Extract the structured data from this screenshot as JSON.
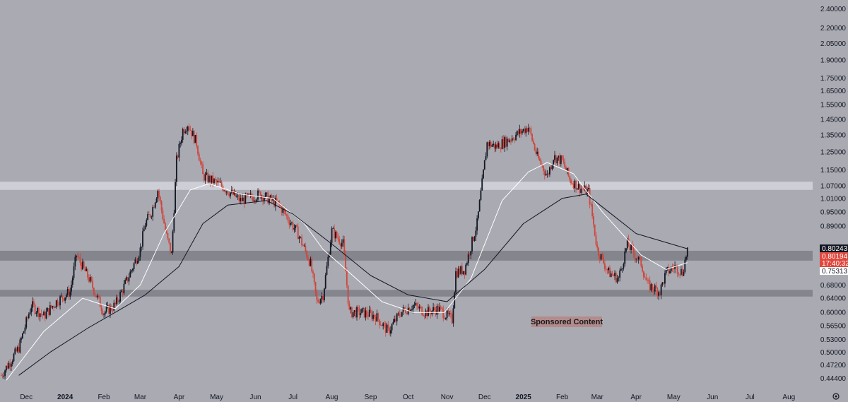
{
  "chart_data": {
    "type": "candlestick",
    "y_scale": "log",
    "y_ticks": [
      "0.44400",
      "0.47200",
      "0.50000",
      "0.53000",
      "0.56500",
      "0.60000",
      "0.64000",
      "0.68000",
      "0.72000",
      "0.75313",
      "0.80194",
      "0.80243",
      "0.89000",
      "0.95000",
      "1.01000",
      "1.07000",
      "1.15000",
      "1.25000",
      "1.35000",
      "1.45000",
      "1.55000",
      "1.65000",
      "1.75000",
      "1.90000",
      "2.05000",
      "2.20000",
      "2.40000"
    ],
    "y_tick_labels": [
      "0.44400",
      "0.47200",
      "0.50000",
      "0.53000",
      "0.56500",
      "0.60000",
      "0.64000",
      "0.68000",
      "0.72000",
      "0.89000",
      "0.95000",
      "1.01000",
      "1.07000",
      "1.15000",
      "1.25000",
      "1.35000",
      "1.45000",
      "1.55000",
      "1.65000",
      "1.75000",
      "1.90000",
      "2.05000",
      "2.20000",
      "2.40000"
    ],
    "y_range": [
      0.425,
      2.5
    ],
    "x_labels": [
      "Dec",
      "2024",
      "Feb",
      "Mar",
      "Apr",
      "May",
      "Jun",
      "Jul",
      "Aug",
      "Sep",
      "Oct",
      "Nov",
      "Dec",
      "2025",
      "Feb",
      "Mar",
      "Apr",
      "May",
      "Jun",
      "Jul",
      "Aug"
    ],
    "x_label_dates": [
      "2023-12-01",
      "2024-01-01",
      "2024-02-01",
      "2024-03-01",
      "2024-04-01",
      "2024-05-01",
      "2024-06-01",
      "2024-07-01",
      "2024-08-01",
      "2024-09-01",
      "2024-10-01",
      "2024-11-01",
      "2024-12-01",
      "2025-01-01",
      "2025-02-01",
      "2025-03-01",
      "2025-04-01",
      "2025-05-01",
      "2025-06-01",
      "2025-07-01",
      "2025-08-01"
    ],
    "x_range": [
      "2023-11-10",
      "2025-08-20"
    ],
    "price_path": [
      [
        "2023-11-11",
        0.45
      ],
      [
        "2023-11-25",
        0.51
      ],
      [
        "2023-12-05",
        0.62
      ],
      [
        "2023-12-15",
        0.59
      ],
      [
        "2023-12-25",
        0.63
      ],
      [
        "2024-01-05",
        0.66
      ],
      [
        "2024-01-10",
        0.78
      ],
      [
        "2024-01-20",
        0.7
      ],
      [
        "2024-02-01",
        0.6
      ],
      [
        "2024-02-10",
        0.62
      ],
      [
        "2024-02-20",
        0.7
      ],
      [
        "2024-03-01",
        0.8
      ],
      [
        "2024-03-05",
        0.9
      ],
      [
        "2024-03-10",
        0.95
      ],
      [
        "2024-03-15",
        1.05
      ],
      [
        "2024-03-22",
        0.85
      ],
      [
        "2024-03-26",
        0.78
      ],
      [
        "2024-03-30",
        1.2
      ],
      [
        "2024-04-04",
        1.38
      ],
      [
        "2024-04-08",
        1.42
      ],
      [
        "2024-04-15",
        1.3
      ],
      [
        "2024-04-20",
        1.12
      ],
      [
        "2024-05-05",
        1.07
      ],
      [
        "2024-05-20",
        1.0
      ],
      [
        "2024-06-05",
        1.03
      ],
      [
        "2024-06-20",
        0.98
      ],
      [
        "2024-07-05",
        0.86
      ],
      [
        "2024-07-15",
        0.75
      ],
      [
        "2024-07-20",
        0.63
      ],
      [
        "2024-07-25",
        0.65
      ],
      [
        "2024-08-01",
        0.87
      ],
      [
        "2024-08-10",
        0.82
      ],
      [
        "2024-08-15",
        0.6
      ],
      [
        "2024-08-25",
        0.6
      ],
      [
        "2024-09-05",
        0.59
      ],
      [
        "2024-09-15",
        0.55
      ],
      [
        "2024-09-25",
        0.6
      ],
      [
        "2024-10-05",
        0.62
      ],
      [
        "2024-10-15",
        0.6
      ],
      [
        "2024-10-25",
        0.61
      ],
      [
        "2024-11-05",
        0.58
      ],
      [
        "2024-11-08",
        0.72
      ],
      [
        "2024-11-15",
        0.73
      ],
      [
        "2024-11-25",
        0.9
      ],
      [
        "2024-12-03",
        1.3
      ],
      [
        "2024-12-10",
        1.28
      ],
      [
        "2024-12-20",
        1.32
      ],
      [
        "2025-01-05",
        1.4
      ],
      [
        "2025-01-12",
        1.22
      ],
      [
        "2025-01-20",
        1.12
      ],
      [
        "2025-01-25",
        1.22
      ],
      [
        "2025-02-01",
        1.2
      ],
      [
        "2025-02-07",
        1.1
      ],
      [
        "2025-02-15",
        1.06
      ],
      [
        "2025-02-22",
        1.04
      ],
      [
        "2025-03-01",
        0.8
      ],
      [
        "2025-03-10",
        0.72
      ],
      [
        "2025-03-18",
        0.7
      ],
      [
        "2025-03-25",
        0.82
      ],
      [
        "2025-04-05",
        0.75
      ],
      [
        "2025-04-10",
        0.68
      ],
      [
        "2025-04-20",
        0.66
      ],
      [
        "2025-04-25",
        0.72
      ],
      [
        "2025-05-02",
        0.74
      ],
      [
        "2025-05-08",
        0.72
      ],
      [
        "2025-05-12",
        0.8
      ]
    ],
    "series": [
      {
        "name": "",
        "color": "#ffffff",
        "values": [
          [
            "2023-11-15",
            0.44
          ],
          [
            "2023-12-15",
            0.55
          ],
          [
            "2024-01-15",
            0.64
          ],
          [
            "2024-02-10",
            0.61
          ],
          [
            "2024-03-01",
            0.68
          ],
          [
            "2024-03-20",
            0.86
          ],
          [
            "2024-04-10",
            1.05
          ],
          [
            "2024-04-25",
            1.08
          ],
          [
            "2024-05-20",
            1.03
          ],
          [
            "2024-06-15",
            1.01
          ],
          [
            "2024-07-10",
            0.9
          ],
          [
            "2024-07-25",
            0.8
          ],
          [
            "2024-08-15",
            0.72
          ],
          [
            "2024-09-10",
            0.63
          ],
          [
            "2024-10-05",
            0.6
          ],
          [
            "2024-10-30",
            0.6
          ],
          [
            "2024-11-20",
            0.7
          ],
          [
            "2024-12-15",
            1.0
          ],
          [
            "2025-01-05",
            1.14
          ],
          [
            "2025-01-20",
            1.19
          ],
          [
            "2025-02-10",
            1.13
          ],
          [
            "2025-03-05",
            0.95
          ],
          [
            "2025-04-05",
            0.78
          ],
          [
            "2025-04-25",
            0.73
          ],
          [
            "2025-05-12",
            0.75313
          ]
        ]
      },
      {
        "name": "",
        "color": "#131722",
        "values": [
          [
            "2023-11-25",
            0.45
          ],
          [
            "2023-12-20",
            0.5
          ],
          [
            "2024-01-20",
            0.56
          ],
          [
            "2024-02-10",
            0.6
          ],
          [
            "2024-03-05",
            0.65
          ],
          [
            "2024-04-01",
            0.74
          ],
          [
            "2024-04-20",
            0.9
          ],
          [
            "2024-05-10",
            0.98
          ],
          [
            "2024-06-10",
            1.0
          ],
          [
            "2024-07-01",
            0.94
          ],
          [
            "2024-08-01",
            0.82
          ],
          [
            "2024-09-01",
            0.71
          ],
          [
            "2024-10-01",
            0.65
          ],
          [
            "2024-11-01",
            0.63
          ],
          [
            "2024-12-01",
            0.73
          ],
          [
            "2025-01-01",
            0.9
          ],
          [
            "2025-02-01",
            1.01
          ],
          [
            "2025-02-20",
            1.03
          ],
          [
            "2025-03-10",
            0.95
          ],
          [
            "2025-04-01",
            0.86
          ],
          [
            "2025-05-12",
            0.80243
          ]
        ]
      }
    ],
    "zones": [
      {
        "low": 1.05,
        "high": 1.09,
        "color": "#d5d6dc"
      },
      {
        "low": 0.76,
        "high": 0.795,
        "color": "#7e7f86"
      },
      {
        "low": 0.645,
        "high": 0.665,
        "color": "#7e7f86"
      }
    ],
    "price_labels": [
      {
        "value": 0.80243,
        "text": "0.80243",
        "bg": "#131722",
        "fg": "#ffffff"
      },
      {
        "value": 0.80194,
        "text": "0.80194",
        "sub": "17:40:32",
        "bg": "#e0483e",
        "fg": "#ffffff"
      },
      {
        "value": 0.75313,
        "text": "0.75313",
        "bg": "#ffffff",
        "fg": "#131722"
      }
    ],
    "annotation": "Sponsored Content",
    "colors": {
      "background": "#a9aab2",
      "up": "#131722",
      "down": "#d1453b"
    }
  },
  "icons": {
    "settings": "gear-icon"
  }
}
